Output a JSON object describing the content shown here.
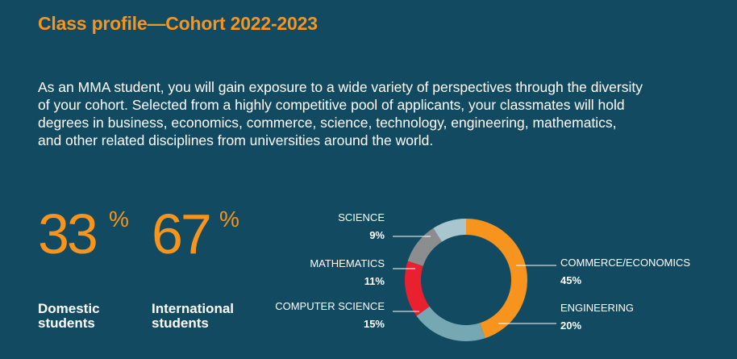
{
  "title": "Class profile—Cohort 2022-2023",
  "intro_lines": [
    "As an MMA student, you will gain exposure to a wide variety of perspectives through the diversity",
    "of your cohort. Selected from a highly competitive pool of applicants, your classmates will hold",
    "degrees in business, economics, commerce, science, technology, engineering, mathematics,",
    "and other related disciplines from universities around the world."
  ],
  "stats": [
    {
      "value": "33",
      "unit": "%",
      "label_lines": [
        "Domestic",
        "students"
      ]
    },
    {
      "value": "67",
      "unit": "%",
      "label_lines": [
        "International",
        "students"
      ]
    }
  ],
  "colors": {
    "background": "#124a62",
    "accent": "#f7941d",
    "ring_hole": "#124a62"
  },
  "chart_data": {
    "type": "pie",
    "style": "donut",
    "title": "",
    "slices": [
      {
        "name": "COMMERCE/ECONOMICS",
        "value": 45,
        "label": "45%",
        "color": "#f7941d",
        "side": "right"
      },
      {
        "name": "ENGINEERING",
        "value": 20,
        "label": "20%",
        "color": "#76a8b3",
        "side": "right"
      },
      {
        "name": "COMPUTER SCIENCE",
        "value": 15,
        "label": "15%",
        "color": "#e8202f",
        "side": "left"
      },
      {
        "name": "MATHEMATICS",
        "value": 11,
        "label": "11%",
        "color": "#8b8d8f",
        "side": "left"
      },
      {
        "name": "SCIENCE",
        "value": 9,
        "label": "9%",
        "color": "#a9c6cf",
        "side": "left"
      }
    ]
  }
}
